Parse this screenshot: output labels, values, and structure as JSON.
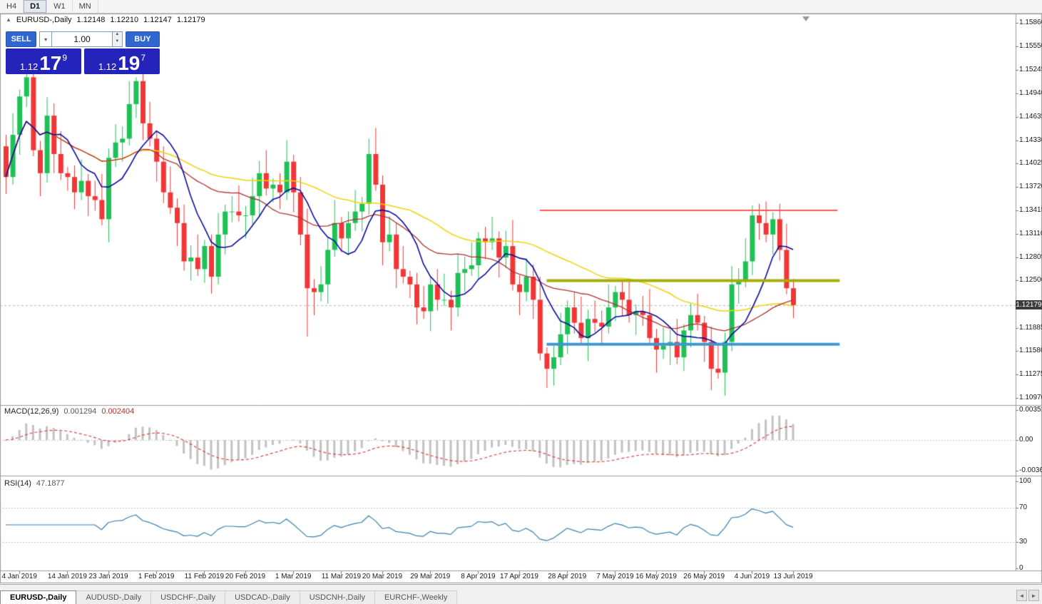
{
  "toolbar": {
    "timeframes": [
      "H4",
      "D1",
      "W1",
      "MN"
    ],
    "active": "D1"
  },
  "chart_header": {
    "symbol": "EURUSD-,Daily",
    "open": "1.12148",
    "high": "1.12210",
    "low": "1.12147",
    "close": "1.12179"
  },
  "trade_panel": {
    "sell": "SELL",
    "buy": "BUY",
    "volume": "1.00",
    "bid": {
      "prefix": "1.12",
      "big": "17",
      "sup": "9"
    },
    "ask": {
      "prefix": "1.12",
      "big": "19",
      "sup": "7"
    }
  },
  "price_axis": {
    "labels": [
      "1.15860",
      "1.15550",
      "1.15245",
      "1.14940",
      "1.14635",
      "1.14330",
      "1.14025",
      "1.13720",
      "1.13415",
      "1.13110",
      "1.12805",
      "1.12500",
      "1.12195",
      "1.11885",
      "1.11580",
      "1.11275",
      "1.10970"
    ],
    "badge": "1.12179",
    "badge_price": 1.12179
  },
  "indicators": {
    "macd": {
      "name": "MACD(12,26,9)",
      "main_value": "0.001294",
      "signal_value": "0.002404",
      "axis_top": "0.003518",
      "axis_zero": "0.00",
      "axis_bottom": "-0.00367"
    },
    "rsi": {
      "name": "RSI(14)",
      "value": "47.1877",
      "axis": [
        "100",
        "70",
        "30",
        "0"
      ]
    }
  },
  "date_axis": {
    "labels": [
      {
        "text": "4 Jan 2019",
        "i": 2
      },
      {
        "text": "14 Jan 2019",
        "i": 9
      },
      {
        "text": "23 Jan 2019",
        "i": 15
      },
      {
        "text": "1 Feb 2019",
        "i": 22
      },
      {
        "text": "11 Feb 2019",
        "i": 29
      },
      {
        "text": "20 Feb 2019",
        "i": 35
      },
      {
        "text": "1 Mar 2019",
        "i": 42
      },
      {
        "text": "11 Mar 2019",
        "i": 49
      },
      {
        "text": "20 Mar 2019",
        "i": 55
      },
      {
        "text": "29 Mar 2019",
        "i": 62
      },
      {
        "text": "8 Apr 2019",
        "i": 69
      },
      {
        "text": "17 Apr 2019",
        "i": 75
      },
      {
        "text": "28 Apr 2019",
        "i": 82
      },
      {
        "text": "7 May 2019",
        "i": 89
      },
      {
        "text": "16 May 2019",
        "i": 95
      },
      {
        "text": "26 May 2019",
        "i": 102
      },
      {
        "text": "4 Jun 2019",
        "i": 109
      },
      {
        "text": "13 Jun 2019",
        "i": 115
      }
    ]
  },
  "tabs": [
    {
      "label": "EURUSD-,Daily",
      "active": true
    },
    {
      "label": "AUDUSD-,Daily",
      "active": false
    },
    {
      "label": "USDCHF-,Daily",
      "active": false
    },
    {
      "label": "USDCAD-,Daily",
      "active": false
    },
    {
      "label": "USDCNH-,Daily",
      "active": false
    },
    {
      "label": "EURCHF-,Weekly",
      "active": false
    }
  ],
  "tab_scroll": {
    "left": "◄",
    "right": "►"
  },
  "colors": {
    "bull": "#1fc055",
    "bear": "#f03636",
    "ma_fast": "#0b0b9e",
    "ma_mid": "#b23030",
    "ma_slow": "#f2d20c",
    "hline_red": "#fb5955",
    "hline_olive": "#a4ae08",
    "hline_blue": "#3e97d4",
    "macd_hist": "#c2c2c2",
    "macd_signal": "#dd3333",
    "rsi_line": "#3a7fae",
    "price_line": "#b8b8b8",
    "badge_bg": "#3c3c3c",
    "badge_fg": "#ffffff",
    "button_blue": "#2f66cf",
    "tile_blue": "#2424bb"
  },
  "chart_data": {
    "type": "candlestick",
    "symbol": "EURUSD",
    "timeframe": "Daily",
    "ohlc_display": {
      "open": 1.12148,
      "high": 1.1221,
      "low": 1.12147,
      "close": 1.12179
    },
    "first_open": 1.1425,
    "closes": [
      1.1385,
      1.144,
      1.149,
      1.1515,
      1.142,
      1.139,
      1.1465,
      1.1415,
      1.139,
      1.1385,
      1.1365,
      1.138,
      1.136,
      1.1355,
      1.133,
      1.141,
      1.143,
      1.1435,
      1.148,
      1.151,
      1.1455,
      1.1435,
      1.1405,
      1.1365,
      1.1345,
      1.1325,
      1.1275,
      1.128,
      1.1265,
      1.1295,
      1.1255,
      1.131,
      1.134,
      1.134,
      1.1335,
      1.1335,
      1.136,
      1.139,
      1.137,
      1.1375,
      1.1365,
      1.1405,
      1.1365,
      1.131,
      1.124,
      1.1235,
      1.1245,
      1.129,
      1.1325,
      1.1305,
      1.1325,
      1.134,
      1.135,
      1.1415,
      1.1375,
      1.13,
      1.131,
      1.1265,
      1.1255,
      1.1245,
      1.1215,
      1.121,
      1.1245,
      1.1225,
      1.1225,
      1.1215,
      1.126,
      1.1265,
      1.127,
      1.1305,
      1.13,
      1.1305,
      1.128,
      1.1295,
      1.1245,
      1.1235,
      1.1255,
      1.1225,
      1.1155,
      1.1135,
      1.115,
      1.118,
      1.1215,
      1.1195,
      1.1175,
      1.12,
      1.1195,
      1.119,
      1.1215,
      1.1235,
      1.1225,
      1.1205,
      1.121,
      1.1205,
      1.1175,
      1.116,
      1.1165,
      1.117,
      1.115,
      1.1185,
      1.1205,
      1.1195,
      1.117,
      1.1135,
      1.113,
      1.117,
      1.1245,
      1.125,
      1.1275,
      1.1335,
      1.1325,
      1.131,
      1.133,
      1.129,
      1.124,
      1.1218
    ],
    "wick_unit": 0.0001,
    "wick_high_cycle": [
      15,
      28,
      9,
      20,
      34,
      12,
      24,
      16,
      30,
      8
    ],
    "wick_low_cycle": [
      22,
      10,
      26,
      14,
      8,
      30,
      12,
      25,
      9,
      18
    ],
    "overrides": [
      {
        "i": 3,
        "h": 1.1525
      },
      {
        "i": 19,
        "h": 1.1515
      },
      {
        "i": 44,
        "l": 1.1177
      },
      {
        "i": 79,
        "l": 1.111
      },
      {
        "i": 103,
        "l": 1.1107
      },
      {
        "i": 109,
        "h": 1.1348
      },
      {
        "i": 115,
        "l": 1.1201
      }
    ],
    "moving_averages": [
      {
        "name": "slow-ma",
        "period": 45,
        "color": "ma_slow",
        "width": 1.5
      },
      {
        "name": "mid-ma",
        "period": 20,
        "color": "ma_mid",
        "width": 1.3
      },
      {
        "name": "fast-ma",
        "period": 8,
        "color": "ma_fast",
        "width": 1.6
      }
    ],
    "hlines": [
      {
        "price": 1.13415,
        "from": 78,
        "to": 121.5,
        "color": "hline_red",
        "width": 2
      },
      {
        "price": 1.125,
        "from": 79,
        "to": 121.8,
        "color": "hline_olive",
        "width": 4
      },
      {
        "price": 1.1167,
        "from": 79,
        "to": 121.8,
        "color": "hline_blue",
        "width": 4
      }
    ],
    "price_axis_values": [
      1.1586,
      1.1555,
      1.15245,
      1.1494,
      1.14635,
      1.1433,
      1.14025,
      1.1372,
      1.13415,
      1.1311,
      1.12805,
      1.125,
      1.12195,
      1.11885,
      1.1158,
      1.11275,
      1.1097
    ],
    "indicators": [
      {
        "name": "MACD",
        "params": [
          12,
          26,
          9
        ],
        "current_main": 0.001294,
        "current_signal": 0.002404,
        "axis_max": 0.003518,
        "axis_min": -0.00367
      },
      {
        "name": "RSI",
        "params": [
          14
        ],
        "current": 47.1877,
        "axis": [
          0,
          100
        ],
        "levels": [
          30,
          70
        ]
      }
    ]
  }
}
